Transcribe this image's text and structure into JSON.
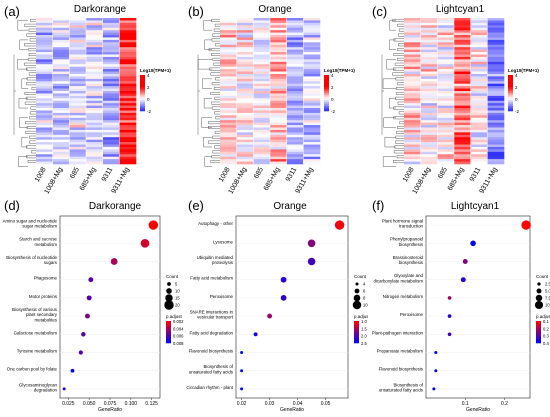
{
  "colors": {
    "high": "#ff0000",
    "mid": "#ffffff",
    "low": "#3333ff",
    "dot_high": "#ff0000",
    "dot_low": "#0000ff"
  },
  "heatmaps": [
    {
      "letter": "(a)",
      "title": "Darkorange",
      "legend_title": "Log10(TPM+1)",
      "legend_ticks": [
        "4",
        "2",
        "0",
        "-2"
      ],
      "columns": [
        "1008",
        "1008+Mg",
        "685",
        "685+Mg",
        "9311",
        "9311+Mg"
      ],
      "pattern": [
        -0.6,
        -0.4,
        -0.3,
        -0.4,
        -0.8,
        1.6
      ],
      "seed": 3
    },
    {
      "letter": "(b)",
      "title": "Orange",
      "legend_title": "Log10(TPM+1)",
      "legend_ticks": [
        "4",
        "2",
        "0",
        "-2"
      ],
      "columns": [
        "1008",
        "1008+Mg",
        "685",
        "685+Mg",
        "9311",
        "9311+Mg"
      ],
      "pattern": [
        0.4,
        0.1,
        0.0,
        0.6,
        -0.7,
        -0.5
      ],
      "seed": 7
    },
    {
      "letter": "(c)",
      "title": "Lightcyan1",
      "legend_title": "Log10(TPM+1)",
      "legend_ticks": [
        "4",
        "2",
        "0",
        "-2"
      ],
      "columns": [
        "1008",
        "1008+Mg",
        "685",
        "685+Mg",
        "9311",
        "9311+Mg"
      ],
      "pattern": [
        0.2,
        0.1,
        0.0,
        1.2,
        0.0,
        -1.2
      ],
      "seed": 11
    }
  ],
  "chart_data": [
    {
      "type": "scatter",
      "letter": "(d)",
      "title": "Darkorange",
      "xlabel": "GeneRatio",
      "ylabel": "",
      "xticks": [
        "0.025",
        "0.050",
        "0.075",
        "0.100",
        "0.125"
      ],
      "xlim": [
        0.015,
        0.135
      ],
      "categories": [
        "Amino sugar and nucleotide sugar metabolism",
        "Starch and sucrose metabolism",
        "Biosynthesis of nucleotide sugars",
        "Phagosome",
        "Motor proteins",
        "Biosynthesis of various plant secondary metabolites",
        "Galactose metabolism",
        "Tyrosine metabolism",
        "One carbon pool by folate",
        "Glycosaminoglycan degradation"
      ],
      "x": [
        0.127,
        0.117,
        0.08,
        0.052,
        0.05,
        0.048,
        0.043,
        0.04,
        0.03,
        0.02
      ],
      "count": [
        20,
        18,
        13,
        8,
        8,
        8,
        7,
        6,
        5,
        3
      ],
      "padj": [
        0.002,
        0.003,
        0.004,
        0.006,
        0.006,
        0.005,
        0.006,
        0.006,
        0.008,
        0.007
      ],
      "size_legend_title": "Count",
      "size_legend": [
        "5",
        "10",
        "15",
        "20"
      ],
      "size_values": [
        5,
        10,
        15,
        20
      ],
      "color_legend_title": "p.adjust",
      "color_legend": [
        "0.002",
        "0.004",
        "0.006",
        "0.008"
      ],
      "color_range": [
        0.002,
        0.008
      ]
    },
    {
      "type": "scatter",
      "letter": "(e)",
      "title": "Orange",
      "xlabel": "GeneRatio",
      "ylabel": "",
      "xticks": [
        "0.02",
        "0.03",
        "0.04",
        "0.05"
      ],
      "xlim": [
        0.018,
        0.058
      ],
      "categories": [
        "Autophagy - other",
        "Lysosome",
        "Ubiquitin mediated proteolysis",
        "Fatty acid metabolism",
        "Peroxisome",
        "SNARE interactions in vesicular transport",
        "Fatty acid degradation",
        "Flavonoid biosynthesis",
        "Biosynthesis of unsaturated fatty acids",
        "Circadian rhythm - plant"
      ],
      "x": [
        0.055,
        0.045,
        0.045,
        0.035,
        0.035,
        0.03,
        0.025,
        0.02,
        0.02,
        0.02
      ],
      "count": [
        11,
        9,
        9,
        7,
        7,
        6,
        5,
        4,
        4,
        4
      ],
      "padj": [
        0.6,
        1.6,
        2.2,
        2.5,
        2.4,
        1.4,
        2.6,
        2.8,
        2.8,
        2.8
      ],
      "size_legend_title": "Count",
      "size_legend": [
        "4",
        "6",
        "8",
        "10"
      ],
      "size_values": [
        4,
        6,
        8,
        10
      ],
      "color_legend_title": "p.adjust",
      "color_legend": [
        "1.0",
        "1.5",
        "2.0",
        "2.5"
      ],
      "color_range": [
        0.5,
        2.8
      ]
    },
    {
      "type": "scatter",
      "letter": "(f)",
      "title": "Lightcyan1",
      "xlabel": "GeneRatio",
      "ylabel": "",
      "xticks": [
        "0.1",
        "0.2"
      ],
      "xlim": [
        0.0,
        0.265
      ],
      "categories": [
        "Plant hormone signal transduction",
        "Phenylpropanoid biosynthesis",
        "Brassinosteroid biosynthesis",
        "Glyoxylate and dicarboxylate metabolism",
        "Nitrogen metabolism",
        "Peroxisome",
        "Plant-pathogen interaction",
        "Propanoate metabolism",
        "Flavonoid biosynthesis",
        "Biosynthesis of unsaturated fatty acids"
      ],
      "x": [
        0.255,
        0.12,
        0.1,
        0.095,
        0.06,
        0.06,
        0.06,
        0.025,
        0.025,
        0.02
      ],
      "count": [
        12,
        6,
        5,
        5,
        3,
        3,
        3,
        2,
        2,
        2
      ],
      "padj": [
        0.05,
        0.45,
        0.25,
        0.4,
        0.2,
        0.4,
        0.35,
        0.45,
        0.45,
        0.45
      ],
      "size_legend_title": "Count",
      "size_legend": [
        "2.5",
        "5.0",
        "7.5",
        "10.0"
      ],
      "size_values": [
        2.5,
        5,
        7.5,
        10
      ],
      "color_legend_title": "p.adjust",
      "color_legend": [
        "0.1",
        "0.2",
        "0.3",
        "0.4"
      ],
      "color_range": [
        0.05,
        0.45
      ]
    }
  ]
}
